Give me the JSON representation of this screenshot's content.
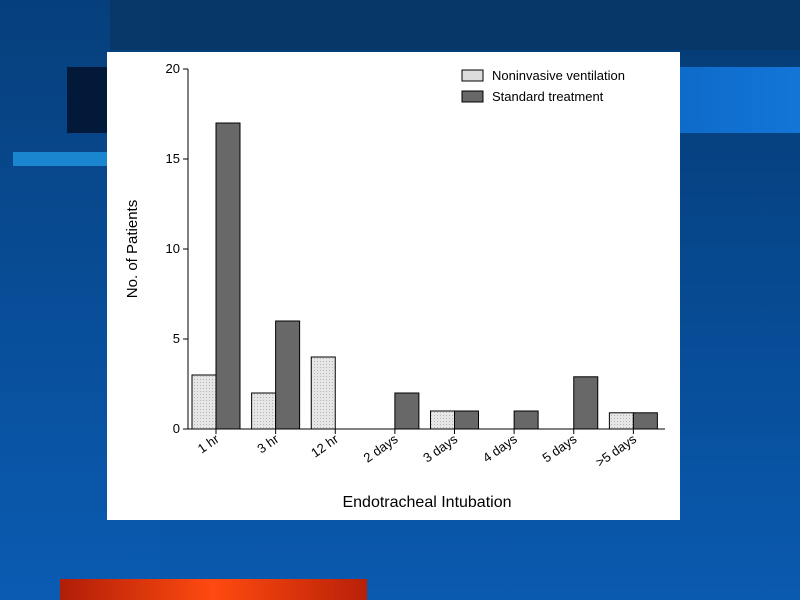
{
  "chart_data": {
    "type": "bar",
    "xlabel": "Endotracheal Intubation",
    "ylabel": "No. of Patients",
    "ylim": [
      0,
      20
    ],
    "yticks": [
      0,
      5,
      10,
      15,
      20
    ],
    "categories": [
      "1 hr",
      "3 hr",
      "12 hr",
      "2 days",
      "3 days",
      "4 days",
      "5 days",
      ">5 days"
    ],
    "series": [
      {
        "name": "Noninvasive ventilation",
        "color": "#e8e8e8",
        "values": [
          3,
          2,
          4,
          0,
          1,
          0,
          0,
          0.9
        ]
      },
      {
        "name": "Standard treatment",
        "color": "#686868",
        "values": [
          17,
          6,
          0,
          2,
          1,
          1,
          2.9,
          0.9
        ]
      }
    ],
    "legend_position": "top-right",
    "grid": false
  }
}
